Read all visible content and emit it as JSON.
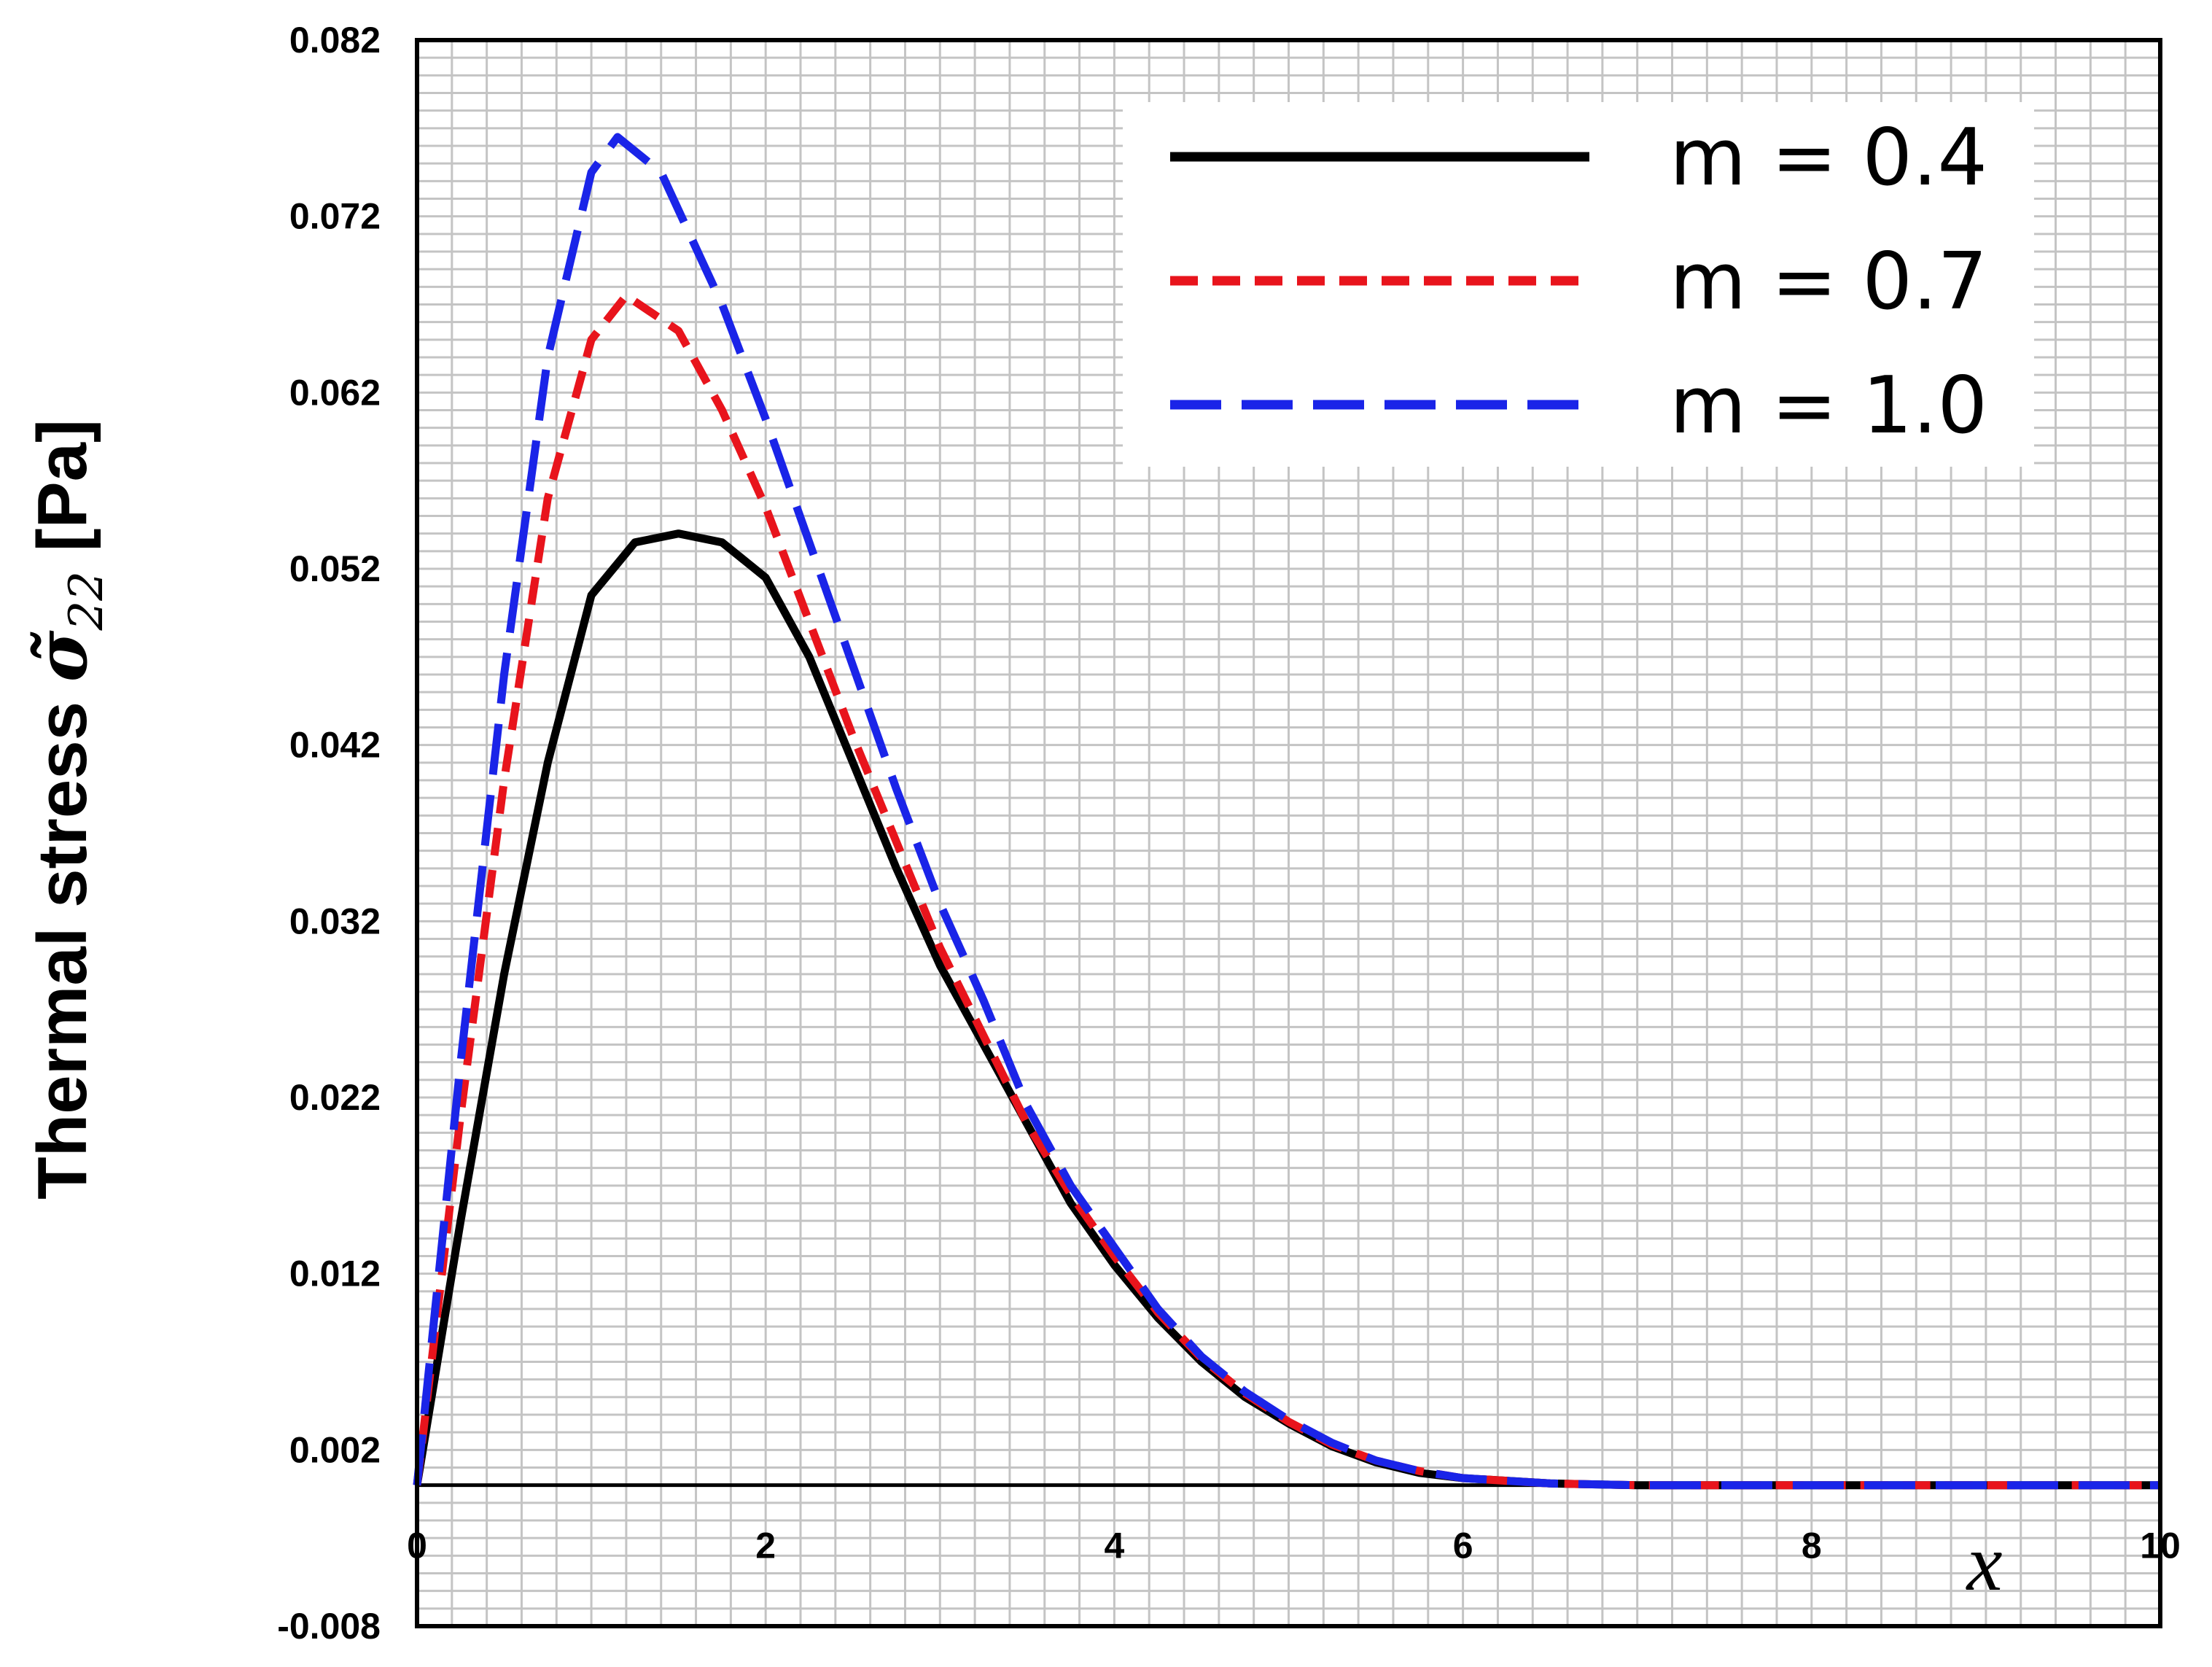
{
  "chart_data": {
    "type": "line",
    "title": "",
    "xlabel": "x",
    "ylabel": "Thermal stress σ̃₂₂ [Pa]",
    "ylabel_parts": {
      "prefix": "Thermal stress ",
      "symbol": "σ̃",
      "subscript": "22",
      "suffix": " [Pa]"
    },
    "xlim": [
      0,
      10
    ],
    "ylim": [
      -0.008,
      0.082
    ],
    "x_ticks": [
      "0",
      "2",
      "4",
      "6",
      "8",
      "10"
    ],
    "y_ticks": [
      "0.082",
      "0.072",
      "0.062",
      "0.052",
      "0.042",
      "0.032",
      "0.022",
      "0.012",
      "0.002",
      "-0.008"
    ],
    "grid": true,
    "legend_position": "top-right",
    "series": [
      {
        "name": "m = 0.4",
        "color": "#000000",
        "style": "solid",
        "x": [
          0,
          0.25,
          0.5,
          0.75,
          1.0,
          1.25,
          1.5,
          1.75,
          2.0,
          2.25,
          2.5,
          2.75,
          3.0,
          3.25,
          3.5,
          3.75,
          4.0,
          4.25,
          4.5,
          4.75,
          5.0,
          5.25,
          5.5,
          5.75,
          6.0,
          6.5,
          7.0,
          7.5,
          8.0,
          9.0,
          10.0
        ],
        "y": [
          0.0,
          0.015,
          0.029,
          0.041,
          0.0505,
          0.0535,
          0.054,
          0.0535,
          0.0515,
          0.047,
          0.041,
          0.035,
          0.0295,
          0.025,
          0.0205,
          0.016,
          0.0125,
          0.0095,
          0.007,
          0.005,
          0.0035,
          0.0022,
          0.0013,
          0.0007,
          0.0004,
          0.0001,
          0.0,
          0.0,
          0.0,
          0.0,
          0.0
        ]
      },
      {
        "name": "m = 0.7",
        "color": "#e8141c",
        "style": "dashed",
        "x": [
          0,
          0.25,
          0.5,
          0.75,
          1.0,
          1.2,
          1.5,
          1.75,
          2.0,
          2.25,
          2.5,
          2.75,
          3.0,
          3.25,
          3.5,
          3.75,
          4.0,
          4.25,
          4.5,
          4.75,
          5.0,
          5.25,
          5.5,
          5.75,
          6.0,
          6.5,
          7.0,
          7.5,
          8.0,
          9.0,
          10.0
        ],
        "y": [
          0.0,
          0.021,
          0.04,
          0.056,
          0.065,
          0.0675,
          0.0655,
          0.061,
          0.0555,
          0.049,
          0.0425,
          0.0365,
          0.0305,
          0.0255,
          0.0205,
          0.0165,
          0.013,
          0.0098,
          0.0072,
          0.0052,
          0.0036,
          0.0023,
          0.0014,
          0.0008,
          0.0004,
          0.0001,
          0.0,
          0.0,
          0.0,
          0.0,
          0.0
        ]
      },
      {
        "name": "m = 1.0",
        "color": "#1a24e8",
        "style": "long-dash",
        "x": [
          0,
          0.25,
          0.5,
          0.75,
          1.0,
          1.15,
          1.4,
          1.75,
          2.0,
          2.25,
          2.5,
          2.75,
          3.0,
          3.25,
          3.5,
          3.75,
          4.0,
          4.25,
          4.5,
          4.75,
          5.0,
          5.25,
          5.5,
          5.75,
          6.0,
          6.5,
          7.0,
          7.5,
          8.0,
          9.0,
          10.0
        ],
        "y": [
          0.0,
          0.024,
          0.046,
          0.064,
          0.0745,
          0.0765,
          0.0745,
          0.067,
          0.0605,
          0.0535,
          0.0465,
          0.0395,
          0.033,
          0.0275,
          0.0215,
          0.017,
          0.0135,
          0.01,
          0.0073,
          0.0053,
          0.0037,
          0.0024,
          0.0014,
          0.0008,
          0.0004,
          0.0001,
          0.0,
          0.0,
          0.0,
          0.0,
          0.0
        ]
      }
    ]
  }
}
